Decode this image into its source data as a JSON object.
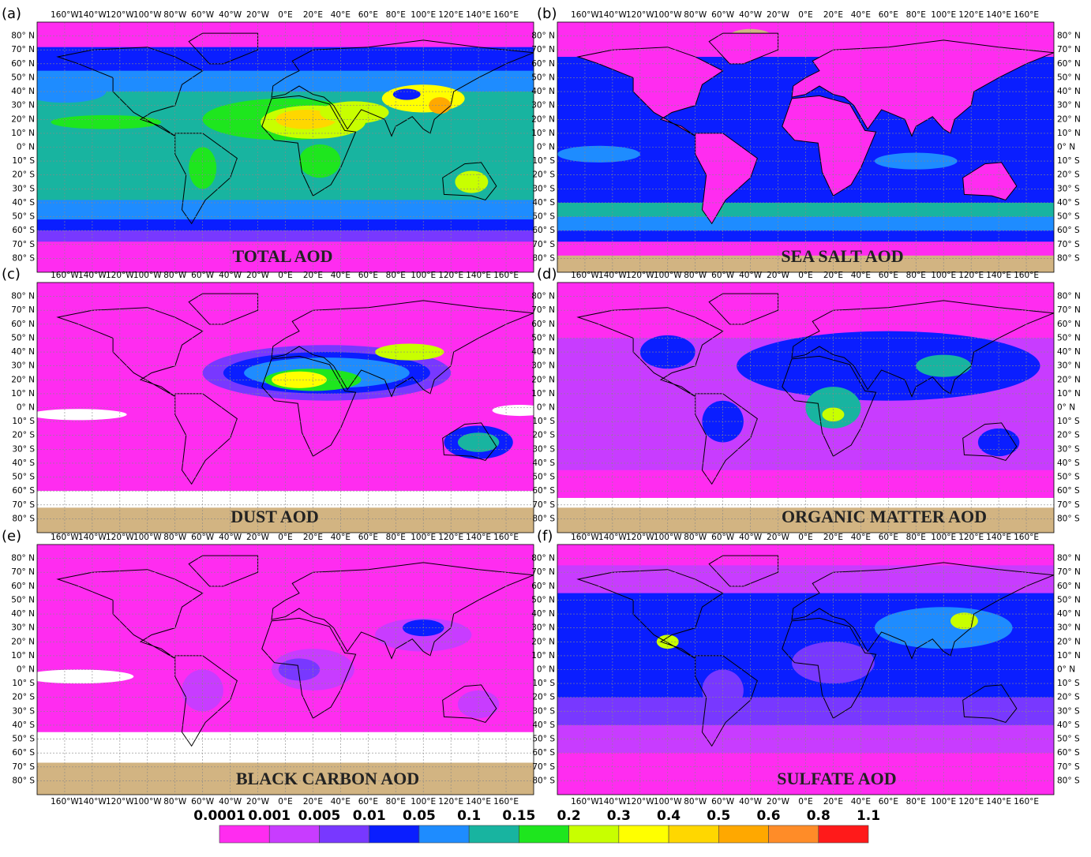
{
  "panels": [
    {
      "label": "(a)",
      "title": "TOTAL AOD"
    },
    {
      "label": "(b)",
      "title": "SEA SALT AOD"
    },
    {
      "label": "(c)",
      "title": "DUST AOD"
    },
    {
      "label": "(d)",
      "title": "ORGANIC MATTER AOD"
    },
    {
      "label": "(e)",
      "title": "BLACK CARBON AOD"
    },
    {
      "label": "(f)",
      "title": "SULFATE AOD"
    }
  ],
  "lon_labels": [
    "160°W",
    "140°W",
    "120°W",
    "100°W",
    "80°W",
    "60°W",
    "40°W",
    "20°W",
    "0°E",
    "20°E",
    "40°E",
    "60°E",
    "80°E",
    "100°E",
    "120°E",
    "140°E",
    "160°E"
  ],
  "lat_labels": [
    "80° N",
    "70° N",
    "60° N",
    "50° N",
    "40° N",
    "30° N",
    "20° N",
    "10° N",
    "0° N",
    "10° S",
    "20° S",
    "30° S",
    "40° S",
    "50° S",
    "60° S",
    "70° S",
    "80° S"
  ],
  "colorbar": {
    "labels": [
      "0.0001",
      "0.001",
      "0.005",
      "0.01",
      "0.05",
      "0.1",
      "0.15",
      "0.2",
      "0.3",
      "0.4",
      "0.5",
      "0.6",
      "0.8",
      "1.1"
    ],
    "colors": [
      "#ff2cf0",
      "#c83cff",
      "#7838ff",
      "#0a1eff",
      "#1e8cff",
      "#18b4a0",
      "#1ee61e",
      "#c8ff00",
      "#ffff00",
      "#ffd700",
      "#ffa800",
      "#ff8c28",
      "#ff1a1a"
    ]
  }
}
